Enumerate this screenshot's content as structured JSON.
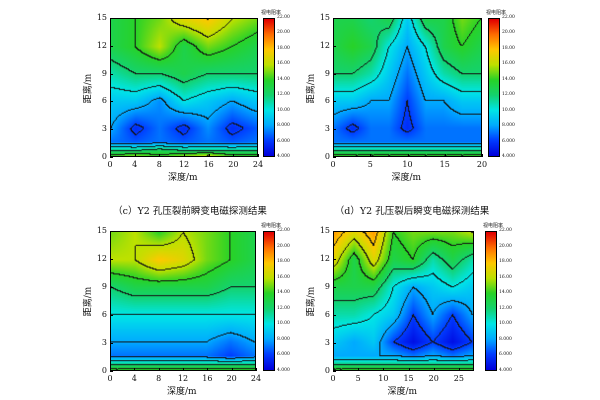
{
  "captions": [
    "（c）Y2 孔压裂前瞬变电磁探测结果",
    "（d）Y2 孔压裂后瞬变电磁探测结果"
  ],
  "chart_data": [
    {
      "type": "heatmap",
      "xlabel": "深度/m",
      "ylabel": "距离/m",
      "colorbar_title": "视电阻率",
      "xlim": [
        0,
        24
      ],
      "ylim": [
        0,
        15
      ],
      "xticks": [
        "0",
        "4",
        "8",
        "12",
        "16",
        "20",
        "24"
      ],
      "yticks": [
        "0",
        "3",
        "6",
        "9",
        "12",
        "15"
      ],
      "colorbar_ticks": [
        "4.000",
        "6.000",
        "8.000",
        "10.00",
        "12.00",
        "14.00",
        "16.00",
        "18.00",
        "20.00",
        "22.00"
      ],
      "colorbar_range": [
        4,
        22
      ],
      "contour_interval": 2,
      "x": [
        0,
        4,
        8,
        12,
        16,
        20,
        24
      ],
      "y": [
        0,
        0.5,
        1.5,
        3,
        6,
        9,
        12,
        15
      ],
      "z": [
        [
          14,
          15,
          14,
          15,
          16,
          14,
          14
        ],
        [
          12,
          12,
          13,
          12,
          12,
          12,
          12
        ],
        [
          7,
          6.5,
          7,
          6.5,
          7,
          6.5,
          7
        ],
        [
          8,
          5.5,
          7,
          5.5,
          7.5,
          5.5,
          6.5
        ],
        [
          9,
          9,
          7.5,
          10,
          9,
          8,
          9
        ],
        [
          11,
          12,
          12,
          13,
          12,
          12,
          12
        ],
        [
          13,
          14,
          16,
          13,
          15,
          14,
          13
        ],
        [
          13,
          14,
          15,
          17,
          18,
          16,
          15
        ]
      ]
    },
    {
      "type": "heatmap",
      "xlabel": "深度/m",
      "ylabel": "距离/m",
      "colorbar_title": "视电阻率",
      "xlim": [
        0,
        20
      ],
      "ylim": [
        0,
        15
      ],
      "xticks": [
        "0",
        "5",
        "10",
        "15",
        "20"
      ],
      "yticks": [
        "0",
        "3",
        "6",
        "9",
        "12",
        "15"
      ],
      "colorbar_ticks": [
        "4.000",
        "6.000",
        "8.000",
        "10.00",
        "12.00",
        "14.00",
        "16.00",
        "18.00",
        "20.00",
        "22.00"
      ],
      "colorbar_range": [
        4,
        22
      ],
      "contour_interval": 2,
      "x": [
        0,
        2.5,
        5,
        7.5,
        10,
        12.5,
        15,
        17.5,
        20
      ],
      "y": [
        0,
        0.5,
        1.5,
        3,
        6,
        9,
        12,
        15
      ],
      "z": [
        [
          14,
          14,
          14,
          14,
          14,
          14,
          14,
          14,
          14
        ],
        [
          12,
          12,
          12,
          12,
          12,
          12,
          12,
          12,
          12
        ],
        [
          7,
          7,
          7,
          7,
          7,
          7,
          7,
          7,
          7
        ],
        [
          7,
          5.5,
          7,
          7,
          5.5,
          7,
          7,
          7,
          7
        ],
        [
          9,
          9,
          8,
          8,
          6,
          8,
          8,
          9,
          9
        ],
        [
          12,
          12,
          11,
          9,
          7,
          9,
          11,
          12,
          12
        ],
        [
          13,
          14,
          13,
          10,
          8,
          10,
          13,
          14,
          13
        ],
        [
          13,
          13,
          12,
          13,
          9,
          13,
          13,
          15,
          14
        ]
      ]
    },
    {
      "type": "heatmap",
      "xlabel": "深度/m",
      "ylabel": "距离/m",
      "colorbar_title": "视电阻率",
      "xlim": [
        0,
        24
      ],
      "ylim": [
        0,
        15
      ],
      "xticks": [
        "0",
        "4",
        "8",
        "12",
        "16",
        "20",
        "24"
      ],
      "yticks": [
        "0",
        "3",
        "6",
        "9",
        "12",
        "15"
      ],
      "colorbar_ticks": [
        "4.000",
        "6.000",
        "8.000",
        "10.00",
        "12.00",
        "14.00",
        "16.00",
        "18.00",
        "20.00",
        "22.00"
      ],
      "colorbar_range": [
        4,
        22
      ],
      "contour_interval": 2,
      "x": [
        0,
        4,
        8,
        12,
        16,
        20,
        24
      ],
      "y": [
        0,
        0.5,
        1.5,
        3,
        6,
        9,
        12,
        15
      ],
      "z": [
        [
          14,
          14,
          14,
          14,
          14,
          14,
          14
        ],
        [
          12,
          12,
          12,
          12,
          12,
          12,
          12
        ],
        [
          7,
          7,
          7,
          7,
          7,
          6,
          7
        ],
        [
          8,
          8,
          8,
          8,
          8,
          7,
          8
        ],
        [
          10,
          10,
          10,
          10,
          10,
          10,
          10
        ],
        [
          12,
          13,
          13,
          13,
          13,
          12,
          12
        ],
        [
          16,
          16,
          18,
          17,
          15,
          14,
          13
        ],
        [
          15,
          16,
          14,
          16,
          15,
          14,
          13
        ]
      ]
    },
    {
      "type": "heatmap",
      "xlabel": "深度/m",
      "ylabel": "距离/m",
      "colorbar_title": "视电阻率",
      "xlim": [
        0,
        28
      ],
      "ylim": [
        0,
        15
      ],
      "xticks": [
        "0",
        "5",
        "10",
        "15",
        "20",
        "25"
      ],
      "yticks": [
        "0",
        "3",
        "6",
        "9",
        "12",
        "15"
      ],
      "colorbar_ticks": [
        "4.000",
        "6.000",
        "8.000",
        "10.00",
        "12.00",
        "14.00",
        "16.00",
        "18.00",
        "20.00",
        "22.00"
      ],
      "colorbar_range": [
        4,
        22
      ],
      "contour_interval": 2,
      "x": [
        0,
        4,
        8,
        12,
        16,
        20,
        24,
        28
      ],
      "y": [
        0,
        0.5,
        1.5,
        3,
        6,
        9,
        12,
        15
      ],
      "z": [
        [
          14,
          14,
          14,
          14,
          14,
          14,
          14,
          14
        ],
        [
          12,
          12,
          12,
          12,
          12,
          12,
          12,
          12
        ],
        [
          8,
          8,
          8,
          8,
          7,
          8,
          7,
          8
        ],
        [
          9,
          8,
          9,
          6,
          4.5,
          6,
          4.5,
          6
        ],
        [
          11,
          11,
          10,
          9,
          6,
          8,
          6,
          8
        ],
        [
          13,
          13,
          13,
          10,
          8,
          9,
          10,
          9
        ],
        [
          17,
          13,
          17,
          13,
          14,
          11,
          13,
          11
        ],
        [
          19,
          17,
          19,
          14,
          15,
          15,
          15,
          16
        ]
      ]
    }
  ]
}
